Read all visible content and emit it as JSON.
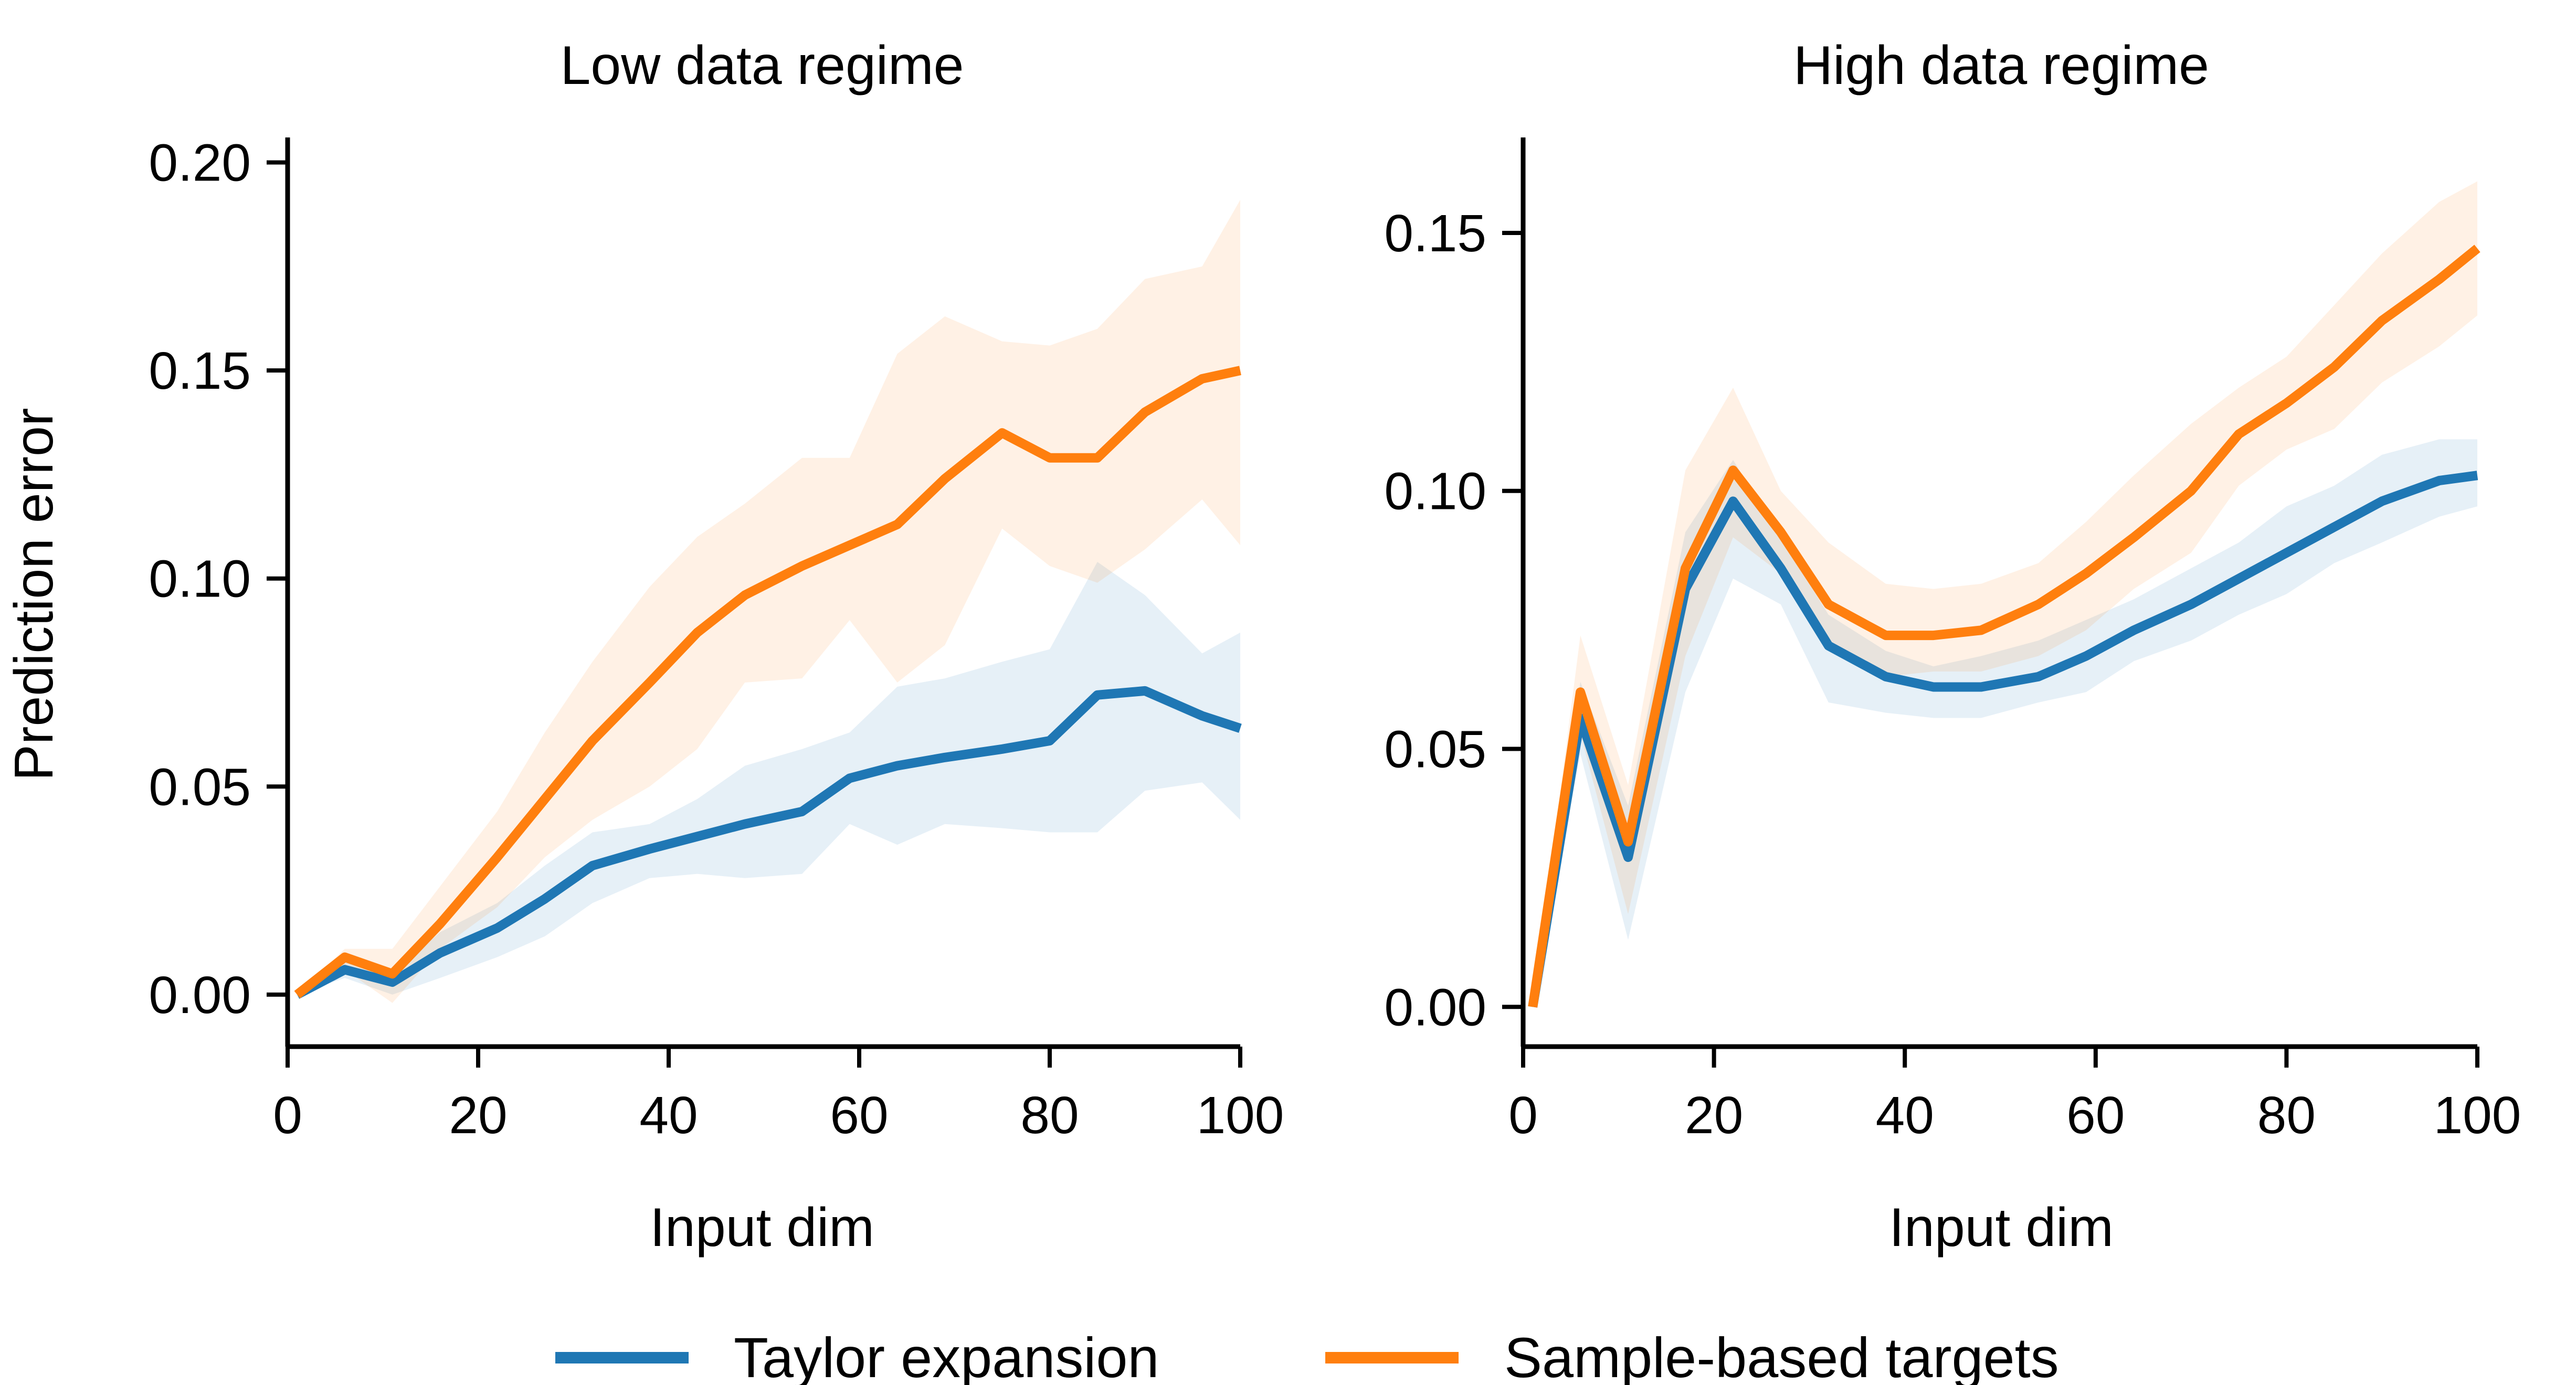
{
  "colors": {
    "taylor": "#1f77b4",
    "sample": "#ff7f0e"
  },
  "legend": {
    "items": [
      {
        "label": "Taylor expansion",
        "color": "#1f77b4"
      },
      {
        "label": "Sample-based targets",
        "color": "#ff7f0e"
      }
    ],
    "placement": "bottom-center"
  },
  "chart_data": [
    {
      "type": "line",
      "title": "Low data regime",
      "xlabel": "Input dim",
      "ylabel": "Prediction error",
      "xlim": [
        0,
        100
      ],
      "ylim": [
        -0.0125,
        0.206
      ],
      "xticks": [
        0,
        20,
        40,
        60,
        80,
        100
      ],
      "xtick_labels": [
        "0",
        "20",
        "40",
        "60",
        "80",
        "100"
      ],
      "yticks": [
        0.0,
        0.05,
        0.1,
        0.15,
        0.2
      ],
      "ytick_labels": [
        "0.00",
        "0.05",
        "0.10",
        "0.15",
        "0.20"
      ],
      "x": [
        1,
        6,
        11,
        16,
        22,
        27,
        32,
        38,
        43,
        48,
        54,
        59,
        64,
        69,
        75,
        80,
        85,
        90,
        96,
        100
      ],
      "series": [
        {
          "name": "Taylor expansion",
          "color": "#1f77b4",
          "values": [
            0.0,
            0.006,
            0.003,
            0.01,
            0.016,
            0.023,
            0.031,
            0.035,
            0.038,
            0.041,
            0.044,
            0.052,
            0.055,
            0.057,
            0.059,
            0.061,
            0.072,
            0.073,
            0.067,
            0.064
          ],
          "lower": [
            0.0,
            0.004,
            0.0,
            0.004,
            0.009,
            0.014,
            0.022,
            0.028,
            0.029,
            0.028,
            0.029,
            0.041,
            0.036,
            0.041,
            0.04,
            0.039,
            0.039,
            0.049,
            0.051,
            0.042
          ],
          "upper": [
            0.0,
            0.008,
            0.005,
            0.015,
            0.022,
            0.031,
            0.039,
            0.041,
            0.047,
            0.055,
            0.059,
            0.063,
            0.074,
            0.076,
            0.08,
            0.083,
            0.104,
            0.096,
            0.082,
            0.087
          ]
        },
        {
          "name": "Sample-based targets",
          "color": "#ff7f0e",
          "values": [
            0.0,
            0.009,
            0.005,
            0.017,
            0.033,
            0.047,
            0.061,
            0.075,
            0.087,
            0.096,
            0.103,
            0.108,
            0.113,
            0.124,
            0.135,
            0.129,
            0.129,
            0.14,
            0.148,
            0.15
          ],
          "lower": [
            0.0,
            0.006,
            -0.002,
            0.011,
            0.021,
            0.033,
            0.042,
            0.05,
            0.059,
            0.075,
            0.076,
            0.09,
            0.075,
            0.084,
            0.112,
            0.103,
            0.099,
            0.107,
            0.119,
            0.108
          ],
          "upper": [
            0.0,
            0.011,
            0.011,
            0.026,
            0.044,
            0.063,
            0.08,
            0.098,
            0.11,
            0.118,
            0.129,
            0.129,
            0.154,
            0.163,
            0.157,
            0.156,
            0.16,
            0.172,
            0.175,
            0.191
          ]
        }
      ]
    },
    {
      "type": "line",
      "title": "High data regime",
      "xlabel": "Input dim",
      "ylabel": "",
      "xlim": [
        0,
        100
      ],
      "ylim": [
        -0.0077,
        0.1685
      ],
      "xticks": [
        0,
        20,
        40,
        60,
        80,
        100
      ],
      "xtick_labels": [
        "0",
        "20",
        "40",
        "60",
        "80",
        "100"
      ],
      "yticks": [
        0.0,
        0.05,
        0.1,
        0.15
      ],
      "ytick_labels": [
        "0.00",
        "0.05",
        "0.10",
        "0.15"
      ],
      "x": [
        1,
        6,
        11,
        17,
        22,
        27,
        32,
        38,
        43,
        48,
        54,
        59,
        64,
        70,
        75,
        80,
        85,
        90,
        96,
        100
      ],
      "series": [
        {
          "name": "Taylor expansion",
          "color": "#1f77b4",
          "values": [
            0.0,
            0.056,
            0.029,
            0.081,
            0.098,
            0.085,
            0.07,
            0.064,
            0.062,
            0.062,
            0.064,
            0.068,
            0.073,
            0.078,
            0.083,
            0.088,
            0.093,
            0.098,
            0.102,
            0.103
          ],
          "lower": [
            0.0,
            0.049,
            0.013,
            0.061,
            0.083,
            0.078,
            0.059,
            0.057,
            0.056,
            0.056,
            0.059,
            0.061,
            0.067,
            0.071,
            0.076,
            0.08,
            0.086,
            0.09,
            0.095,
            0.097
          ],
          "upper": [
            0.0,
            0.063,
            0.039,
            0.092,
            0.106,
            0.091,
            0.076,
            0.069,
            0.066,
            0.068,
            0.071,
            0.075,
            0.079,
            0.085,
            0.09,
            0.097,
            0.101,
            0.107,
            0.11,
            0.11
          ]
        },
        {
          "name": "Sample-based targets",
          "color": "#ff7f0e",
          "values": [
            0.0,
            0.061,
            0.032,
            0.085,
            0.104,
            0.092,
            0.078,
            0.072,
            0.072,
            0.073,
            0.078,
            0.084,
            0.091,
            0.1,
            0.111,
            0.117,
            0.124,
            0.133,
            0.141,
            0.147
          ],
          "lower": [
            0.0,
            0.053,
            0.018,
            0.068,
            0.091,
            0.084,
            0.071,
            0.064,
            0.065,
            0.065,
            0.068,
            0.073,
            0.081,
            0.088,
            0.101,
            0.108,
            0.112,
            0.121,
            0.128,
            0.134
          ],
          "upper": [
            0.0,
            0.072,
            0.043,
            0.104,
            0.12,
            0.1,
            0.09,
            0.082,
            0.081,
            0.082,
            0.086,
            0.094,
            0.103,
            0.113,
            0.12,
            0.126,
            0.136,
            0.146,
            0.156,
            0.16
          ]
        }
      ]
    }
  ]
}
